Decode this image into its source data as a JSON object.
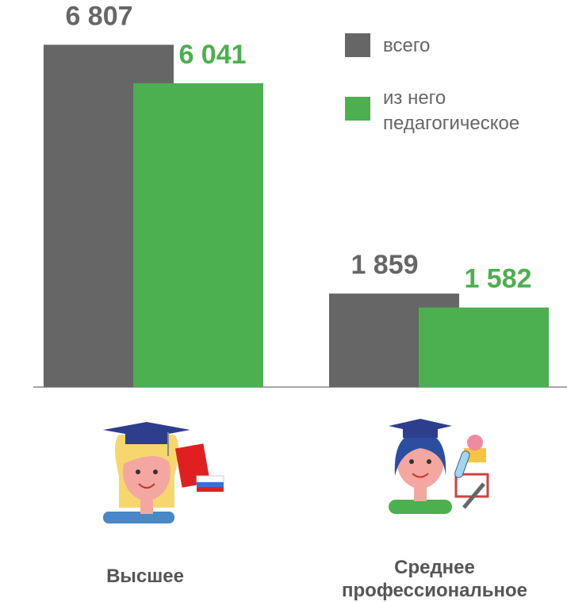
{
  "chart_data": {
    "type": "bar",
    "categories": [
      "Высшее",
      "Среднее профессиональное"
    ],
    "series": [
      {
        "name": "всего",
        "color": "#666666",
        "values": [
          6807,
          1859
        ],
        "value_labels": [
          "6 807",
          "1 859"
        ],
        "label_color": "#666666"
      },
      {
        "name": "из него педагогическое",
        "color": "#4caf50",
        "values": [
          6041,
          1582
        ],
        "value_labels": [
          "6 041",
          "1 582"
        ],
        "label_color": "#4caf50"
      }
    ]
  }
}
